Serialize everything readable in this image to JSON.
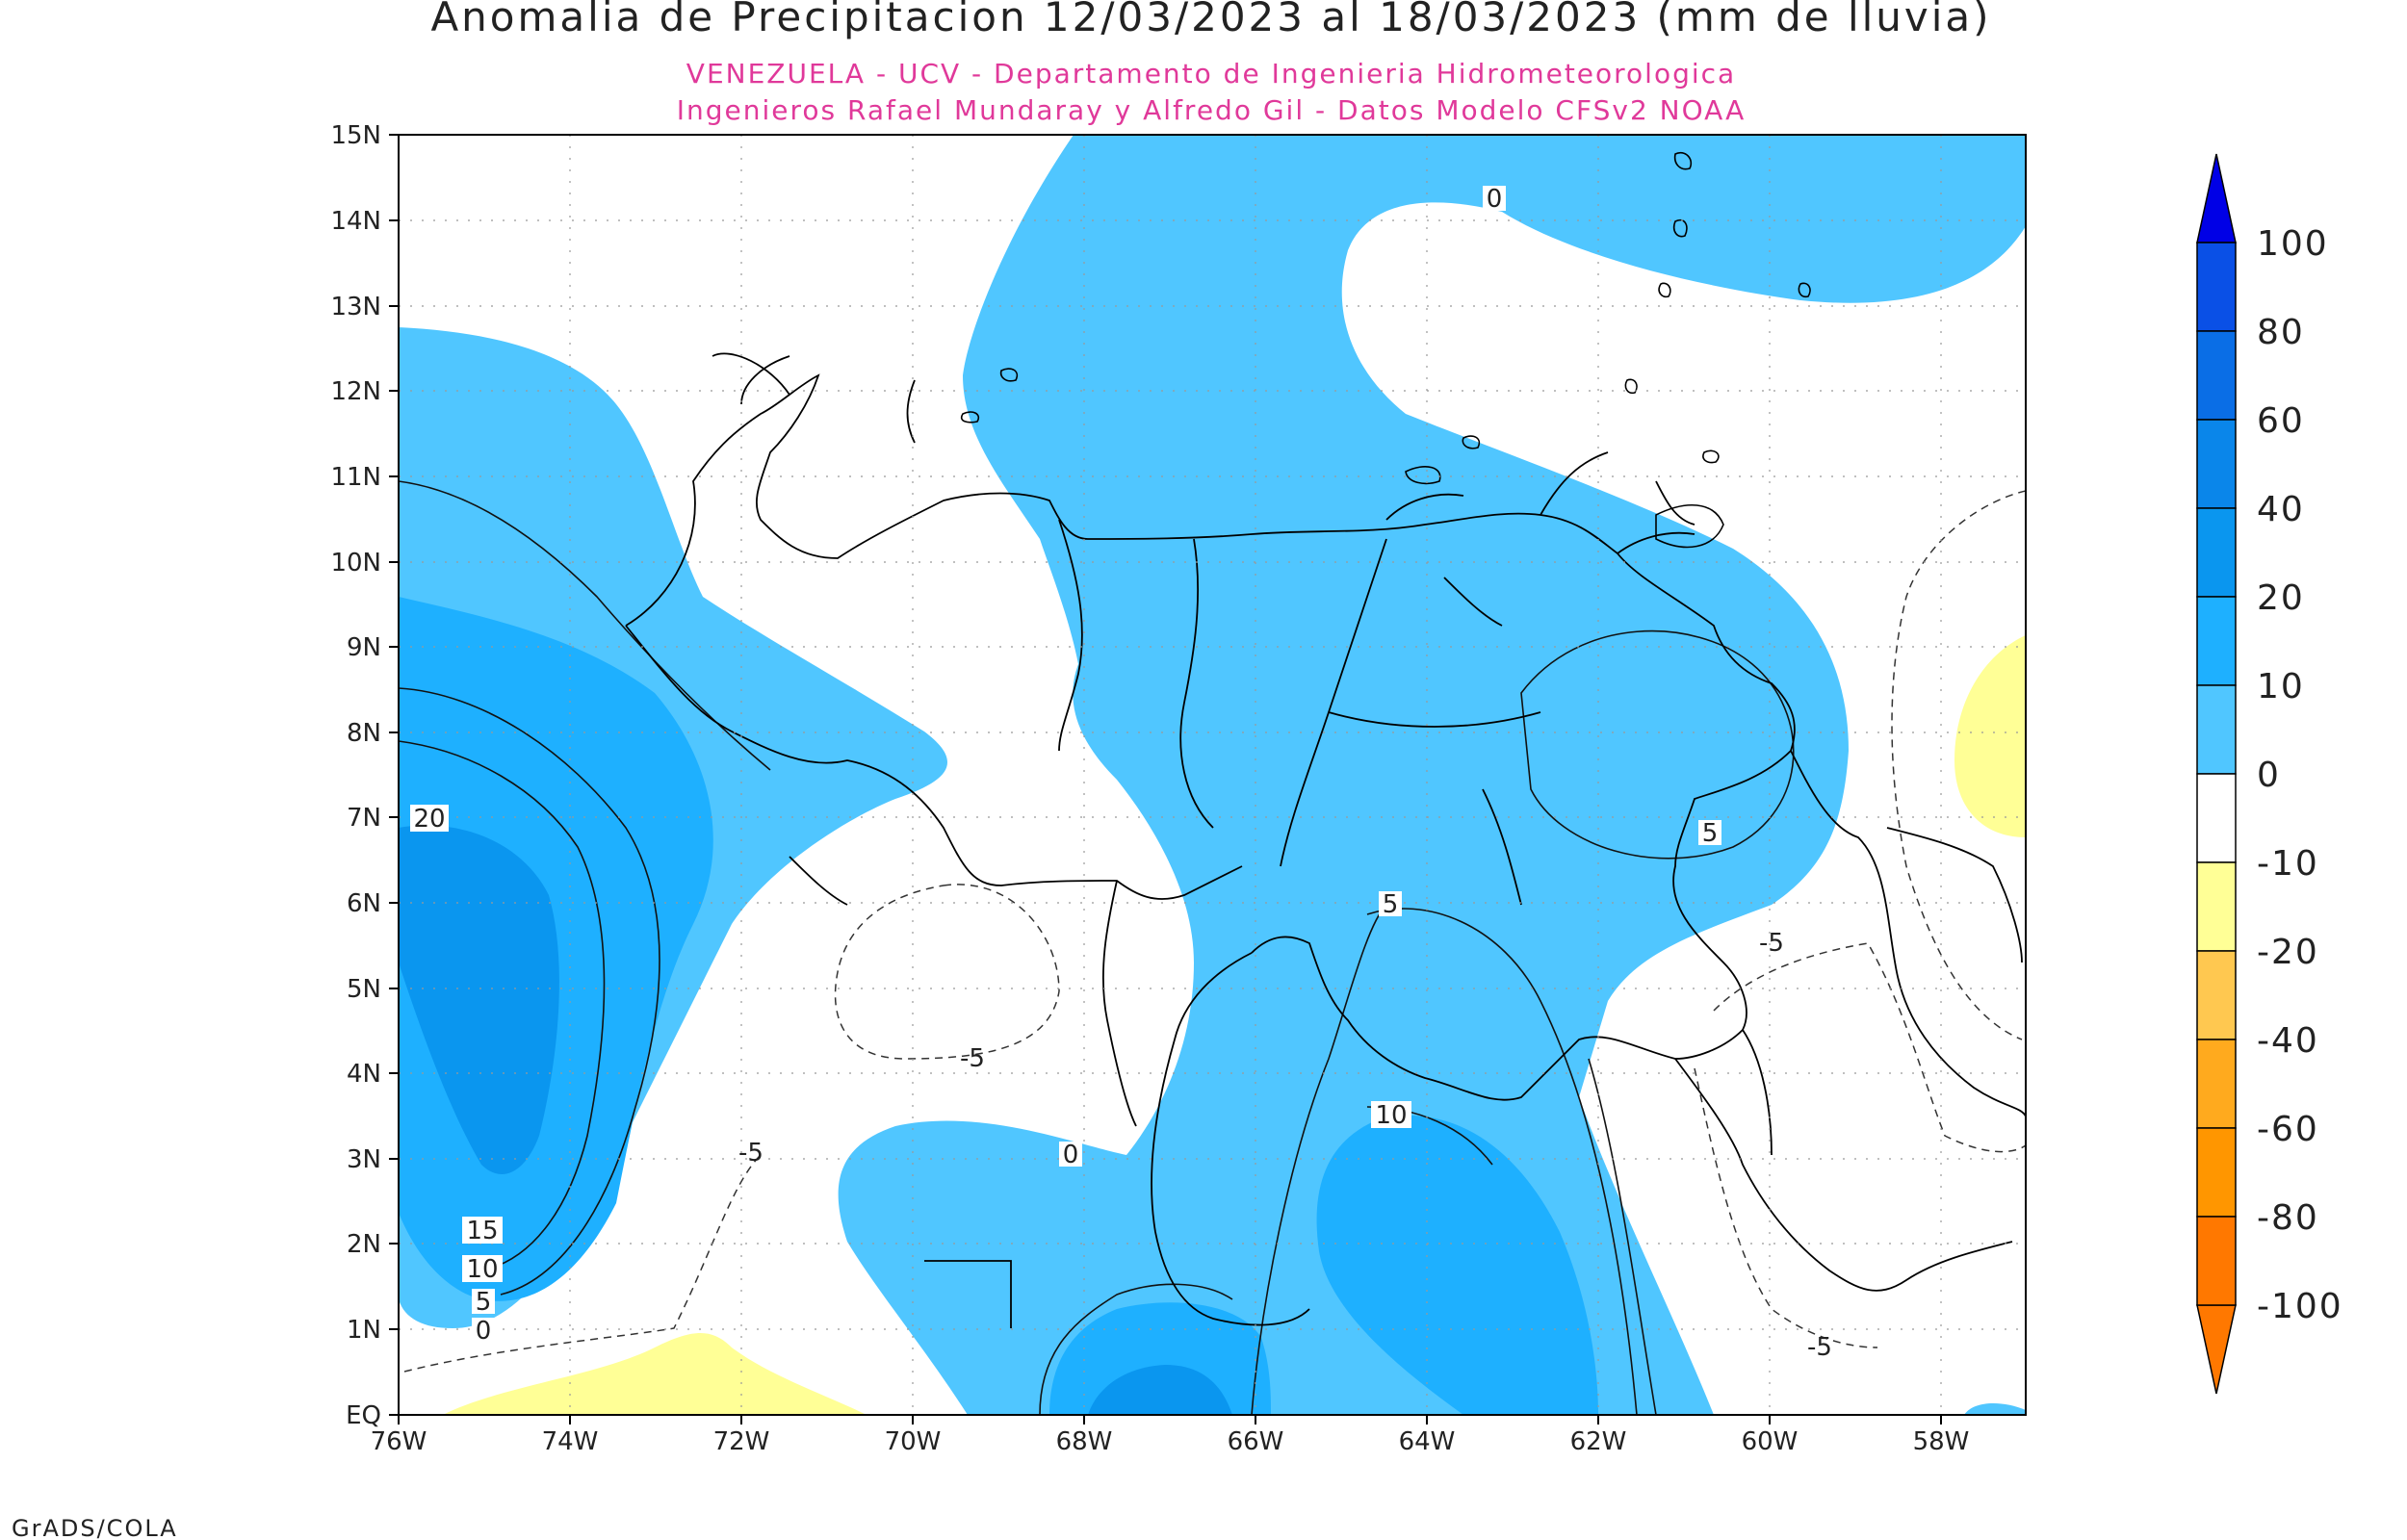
{
  "title": "Anomalia de Precipitacion 12/03/2023 al 18/03/2023 (mm de lluvia)",
  "subtitle_line1": "VENEZUELA - UCV - Departamento de Ingenieria Hidrometeorologica",
  "subtitle_line2": "Ingenieros Rafael Mundaray y Alfredo Gil - Datos Modelo CFSv2 NOAA",
  "credit": "GrADS/COLA",
  "map": {
    "lon_range": [
      -76,
      -57
    ],
    "lat_range": [
      0,
      15
    ],
    "grid": true,
    "lat_ticks": [
      "EQ",
      "1N",
      "2N",
      "3N",
      "4N",
      "5N",
      "6N",
      "7N",
      "8N",
      "9N",
      "10N",
      "11N",
      "12N",
      "13N",
      "14N",
      "15N"
    ],
    "lon_ticks": [
      "76W",
      "74W",
      "72W",
      "70W",
      "68W",
      "66W",
      "64W",
      "62W",
      "60W",
      "58W"
    ],
    "contour_labels": [
      "0",
      "20",
      "15",
      "10",
      "5",
      "0",
      "-5",
      "-5",
      "0",
      "5",
      "10",
      "5",
      "-5",
      "-5"
    ]
  },
  "colorbar": {
    "labels": [
      "100",
      "80",
      "60",
      "40",
      "20",
      "10",
      "0",
      "-10",
      "-20",
      "-40",
      "-60",
      "-80",
      "-100"
    ],
    "colors": [
      "#0000e6",
      "#0a50e6",
      "#0a6ee6",
      "#0a86ea",
      "#0a96ef",
      "#1eb0ff",
      "#50c6ff",
      "#ffffff",
      "#ffff96",
      "#ffc850",
      "#ffaa1e",
      "#ff9600",
      "#ff7800"
    ]
  }
}
